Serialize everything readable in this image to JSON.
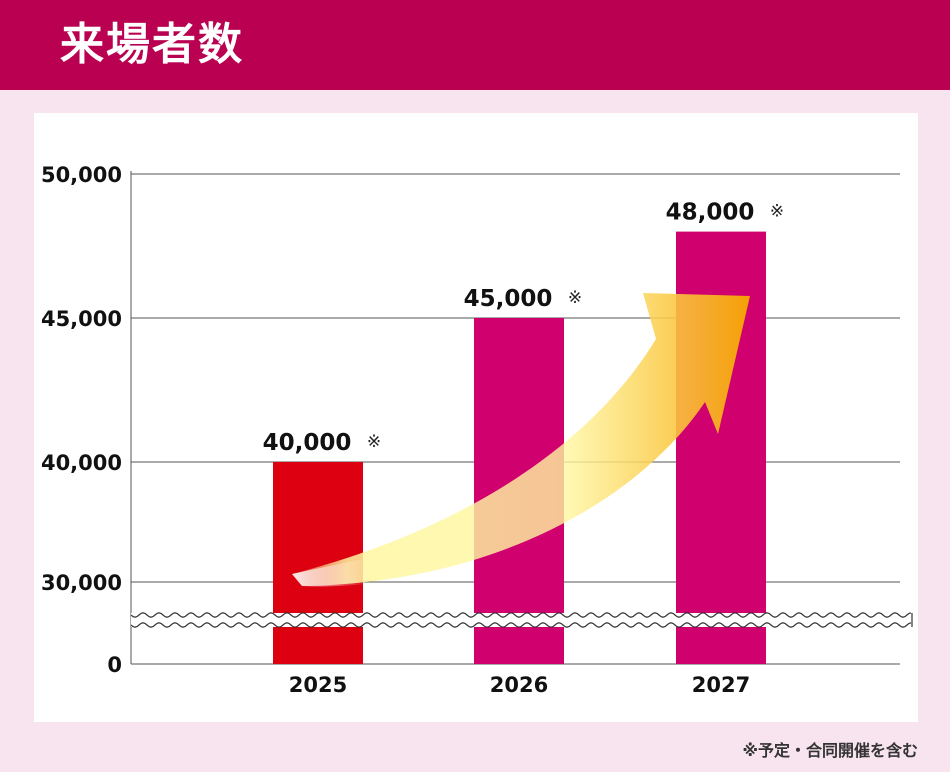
{
  "header": {
    "title": "来場者数"
  },
  "footnote": "※予定・合同開催を含む",
  "colors": {
    "header_bg": "#b90051",
    "page_bg": "#f8e4ef",
    "bar_2025": "#dc0010",
    "bar_other": "#d0006e",
    "arrow_start": "#fff6a0",
    "arrow_end": "#f7a800"
  },
  "chart_data": {
    "type": "bar",
    "categories": [
      "2025",
      "2026",
      "2027"
    ],
    "values": [
      40000,
      45000,
      48000
    ],
    "data_labels": [
      "40,000",
      "45,000",
      "48,000"
    ],
    "label_mark": "※",
    "yticks": [
      0,
      30000,
      40000,
      45000,
      50000
    ],
    "ytick_labels": [
      "0",
      "30,000",
      "40,000",
      "45,000",
      "50,000"
    ],
    "axis_break": true,
    "grid": true,
    "trend_arrow": true
  }
}
